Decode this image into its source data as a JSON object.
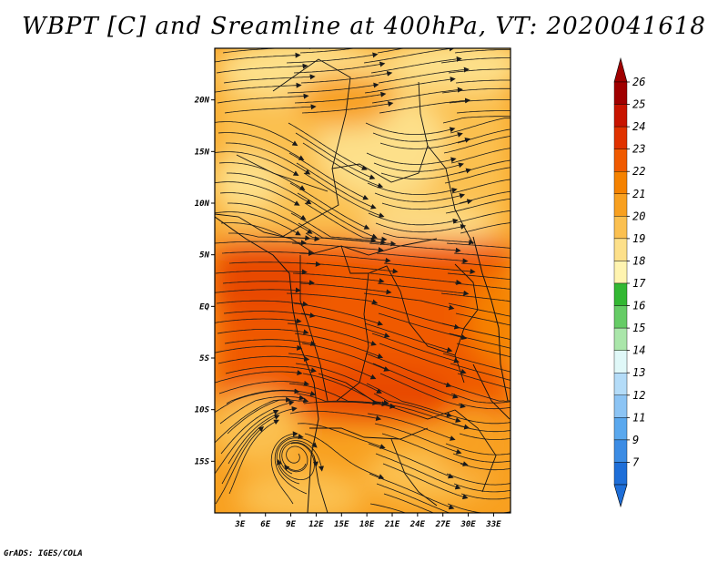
{
  "title": "WBPT [C] and Sreamline at 400hPa, VT: 2020041618",
  "credit": "GrADS: IGES/COLA",
  "map": {
    "lat_labels": [
      "20N",
      "15N",
      "10N",
      "5N",
      "EQ",
      "5S",
      "10S",
      "15S"
    ],
    "lat_values": [
      20,
      15,
      10,
      5,
      0,
      -5,
      -10,
      -15
    ],
    "lon_labels": [
      "3E",
      "6E",
      "9E",
      "12E",
      "15E",
      "18E",
      "21E",
      "24E",
      "27E",
      "30E",
      "33E"
    ],
    "lon_values": [
      3,
      6,
      9,
      12,
      15,
      18,
      21,
      24,
      27,
      30,
      33
    ]
  },
  "colorbar": {
    "labels": [
      "26",
      "25",
      "24",
      "23",
      "22",
      "21",
      "20",
      "19",
      "18",
      "17",
      "16",
      "15",
      "14",
      "13",
      "12",
      "11",
      "9",
      "7"
    ],
    "colors": [
      "#a00000",
      "#c81400",
      "#e03200",
      "#f05a00",
      "#f58200",
      "#f8a020",
      "#fbc050",
      "#fde08a",
      "#fff4b0",
      "#33b833",
      "#66cc66",
      "#aae6aa",
      "#e0f8f8",
      "#b4dcf8",
      "#8cc4f4",
      "#5aa8ee",
      "#3c8ce4",
      "#1e6ed8"
    ]
  }
}
